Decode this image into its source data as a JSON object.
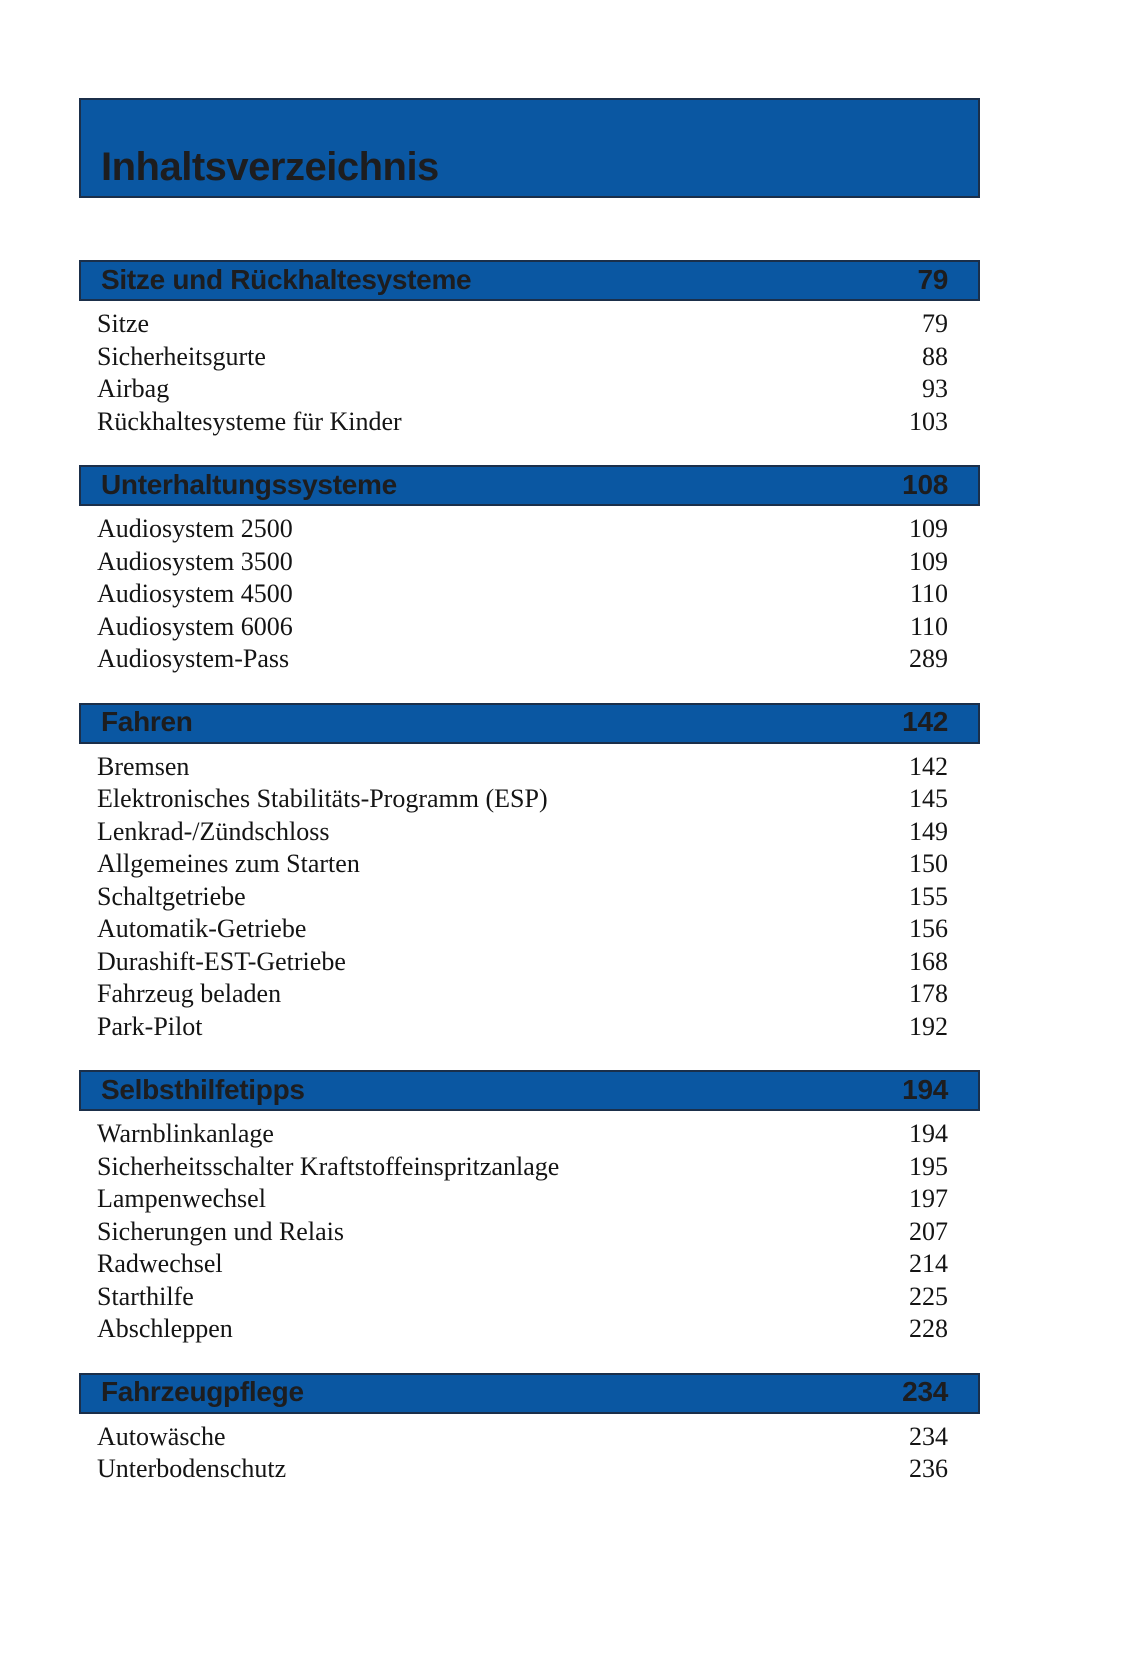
{
  "page": {
    "title": "Inhaltsverzeichnis"
  },
  "colors": {
    "bar_blue": "#0a57a2",
    "bar_border": "#1b2f4a",
    "bar_text": "#1d1d1f",
    "entry_text": "#141414",
    "background": "#ffffff"
  },
  "sections": [
    {
      "title": "Sitze und Rückhaltesysteme",
      "page": "79",
      "entries": [
        {
          "label": "Sitze",
          "page": "79"
        },
        {
          "label": "Sicherheitsgurte",
          "page": "88"
        },
        {
          "label": "Airbag",
          "page": "93"
        },
        {
          "label": "Rückhaltesysteme für Kinder",
          "page": "103"
        }
      ]
    },
    {
      "title": "Unterhaltungssysteme",
      "page": "108",
      "entries": [
        {
          "label": "Audiosystem 2500",
          "page": "109"
        },
        {
          "label": "Audiosystem 3500",
          "page": "109"
        },
        {
          "label": "Audiosystem 4500",
          "page": "110"
        },
        {
          "label": "Audiosystem 6006",
          "page": "110"
        },
        {
          "label": "Audiosystem-Pass",
          "page": "289"
        }
      ]
    },
    {
      "title": "Fahren",
      "page": "142",
      "entries": [
        {
          "label": "Bremsen",
          "page": "142"
        },
        {
          "label": "Elektronisches Stabilitäts-Programm (ESP)",
          "page": "145"
        },
        {
          "label": "Lenkrad-/Zündschloss",
          "page": "149"
        },
        {
          "label": "Allgemeines zum Starten",
          "page": "150"
        },
        {
          "label": "Schaltgetriebe",
          "page": "155"
        },
        {
          "label": "Automatik-Getriebe",
          "page": "156"
        },
        {
          "label": "Durashift-EST-Getriebe",
          "page": "168"
        },
        {
          "label": "Fahrzeug beladen",
          "page": "178"
        },
        {
          "label": "Park-Pilot",
          "page": "192"
        }
      ]
    },
    {
      "title": "Selbsthilfetipps",
      "page": "194",
      "entries": [
        {
          "label": "Warnblinkanlage",
          "page": "194"
        },
        {
          "label": "Sicherheitsschalter Kraftstoffeinspritzanlage",
          "page": "195"
        },
        {
          "label": "Lampenwechsel",
          "page": "197"
        },
        {
          "label": "Sicherungen und Relais",
          "page": "207"
        },
        {
          "label": "Radwechsel",
          "page": "214"
        },
        {
          "label": "Starthilfe",
          "page": "225"
        },
        {
          "label": "Abschleppen",
          "page": "228"
        }
      ]
    },
    {
      "title": "Fahrzeugpflege",
      "page": "234",
      "entries": [
        {
          "label": "Autowäsche",
          "page": "234"
        },
        {
          "label": "Unterbodenschutz",
          "page": "236"
        }
      ]
    }
  ]
}
